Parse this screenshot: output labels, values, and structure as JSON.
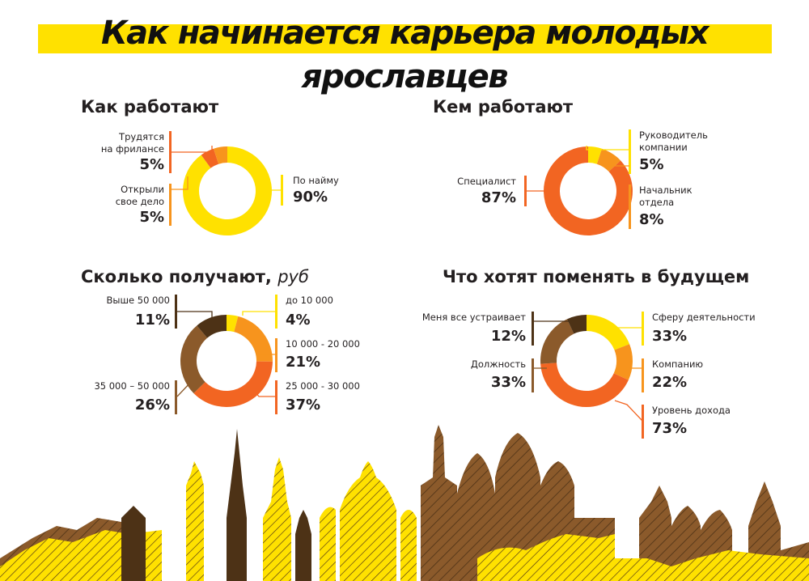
{
  "title": "Как начинается карьера молодых ярославцев",
  "colors": {
    "yellow": "#ffe100",
    "orange": "#f7941d",
    "red_orange": "#f26522",
    "brown": "#8b5a2b",
    "dark_brown": "#4d3216",
    "title_band": "#ffe100"
  },
  "sections": {
    "how": {
      "title": "Как работают",
      "labels": [
        {
          "text": "Трудятся на фрилансе",
          "lines": [
            "Трудятся",
            "на фрилансе"
          ],
          "value": "5%"
        },
        {
          "text": "Открыли свое дело",
          "lines": [
            "Открыли",
            "свое дело"
          ],
          "value": "5%"
        },
        {
          "text": "По найму",
          "lines": [
            "По найму"
          ],
          "value": "90%"
        }
      ]
    },
    "who": {
      "title": "Кем работают",
      "labels": [
        {
          "text": "Руководитель компании",
          "lines": [
            "Руководитель",
            "компании"
          ],
          "value": "5%"
        },
        {
          "text": "Начальник отдела",
          "lines": [
            "Начальник",
            "отдела"
          ],
          "value": "8%"
        },
        {
          "text": "Специалист",
          "lines": [
            "Специалист"
          ],
          "value": "87%"
        }
      ]
    },
    "salary": {
      "title": "Сколько получают,",
      "title_unit": "руб",
      "labels": [
        {
          "text": "до 10 000",
          "value": "4%"
        },
        {
          "text": "10 000 - 20 000",
          "value": "21%"
        },
        {
          "text": "25 000 - 30 000",
          "value": "37%"
        },
        {
          "text": "35 000 – 50 000",
          "value": "26%"
        },
        {
          "text": "Выше 50 000",
          "value": "11%"
        }
      ]
    },
    "change": {
      "title": "Что хотят поменять в будущем",
      "labels": [
        {
          "text": "Сферу деятельности",
          "value": "33%"
        },
        {
          "text": "Компанию",
          "value": "22%"
        },
        {
          "text": "Уровень дохода",
          "value": "73%"
        },
        {
          "text": "Должность",
          "value": "33%"
        },
        {
          "text": "Меня все устраивает",
          "value": "12%"
        }
      ]
    }
  },
  "chart_data": [
    {
      "type": "pie",
      "title": "Как работают",
      "categories": [
        "По найму",
        "Трудятся на фрилансе",
        "Открыли свое дело"
      ],
      "values": [
        90,
        5,
        5
      ],
      "colors": [
        "#ffe100",
        "#f26522",
        "#f7941d"
      ]
    },
    {
      "type": "pie",
      "title": "Кем работают",
      "categories": [
        "Руководитель компании",
        "Начальник отдела",
        "Специалист"
      ],
      "values": [
        5,
        8,
        87
      ],
      "colors": [
        "#ffe100",
        "#f7941d",
        "#f26522"
      ]
    },
    {
      "type": "pie",
      "title": "Сколько получают, руб",
      "categories": [
        "до 10 000",
        "10 000 - 20 000",
        "25 000 - 30 000",
        "35 000 – 50 000",
        "Выше 50 000"
      ],
      "values": [
        4,
        21,
        37,
        26,
        11
      ],
      "colors": [
        "#ffe100",
        "#f7941d",
        "#f26522",
        "#8b5a2b",
        "#4d3216"
      ]
    },
    {
      "type": "pie",
      "title": "Что хотят поменять в будущем",
      "categories": [
        "Сферу деятельности",
        "Компанию",
        "Уровень дохода",
        "Должность",
        "Меня все устраивает"
      ],
      "values": [
        33,
        22,
        73,
        33,
        12
      ],
      "colors": [
        "#ffe100",
        "#f7941d",
        "#f26522",
        "#8b5a2b",
        "#4d3216"
      ]
    }
  ]
}
